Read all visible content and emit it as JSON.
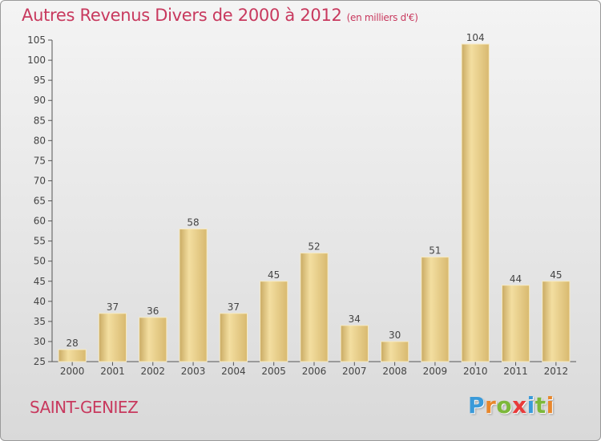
{
  "title": "Autres Revenus Divers de 2000 à 2012",
  "title_unit": "(en milliers d'€)",
  "commune": "SAINT-GENIEZ",
  "brand": {
    "letters": [
      "P",
      "r",
      "o",
      "x",
      "i",
      "t",
      "i"
    ],
    "colors": [
      "#3a9ad9",
      "#e8872c",
      "#7cb83a",
      "#e83a3a",
      "#3a9ad9",
      "#7cb83a",
      "#e8872c"
    ]
  },
  "colors": {
    "title": "#c8395e",
    "bar": "#e9cc84",
    "bar_light": "#f3dea0",
    "bar_dark": "#c9aa63"
  },
  "chart_data": {
    "type": "bar",
    "categories": [
      "2000",
      "2001",
      "2002",
      "2003",
      "2004",
      "2005",
      "2006",
      "2007",
      "2008",
      "2009",
      "2010",
      "2011",
      "2012"
    ],
    "values": [
      28,
      37,
      36,
      58,
      37,
      45,
      52,
      34,
      30,
      51,
      104,
      44,
      45
    ],
    "ylim": [
      25,
      105
    ],
    "yticks": [
      25,
      30,
      35,
      40,
      45,
      50,
      55,
      60,
      65,
      70,
      75,
      80,
      85,
      90,
      95,
      100,
      105
    ],
    "grid": false,
    "data_labels": true
  }
}
